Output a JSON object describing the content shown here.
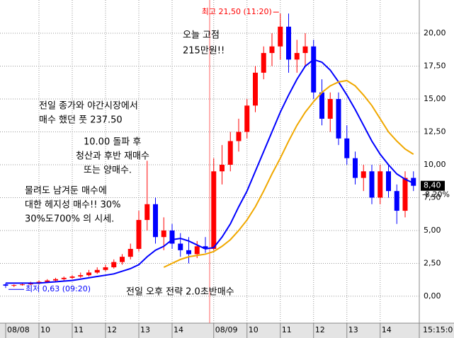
{
  "chart_data": {
    "type": "candlestick",
    "categories": [
      "08/08",
      null,
      null,
      null,
      "10",
      null,
      null,
      null,
      "11",
      null,
      null,
      null,
      "12",
      null,
      null,
      null,
      "13",
      null,
      null,
      null,
      "14",
      null,
      null,
      null,
      null,
      "08/09",
      null,
      null,
      null,
      "10",
      null,
      null,
      null,
      "11",
      null,
      null,
      null,
      "12",
      null,
      null,
      null,
      "13",
      null,
      null,
      null,
      "14",
      null,
      null,
      null,
      null
    ],
    "time_label": "15:15:0",
    "open": [
      0.9,
      0.8,
      0.85,
      0.9,
      1.0,
      1.1,
      1.2,
      1.3,
      1.4,
      1.5,
      1.6,
      1.8,
      2.0,
      2.2,
      2.6,
      3.0,
      3.6,
      5.8,
      7.0,
      4.5,
      5.0,
      4.0,
      3.5,
      3.2,
      3.8,
      3.6,
      9.5,
      10.0,
      11.8,
      12.5,
      14.5,
      17.0,
      18.5,
      19.0,
      20.5,
      18.0,
      18.5,
      19.0,
      15.5,
      13.5,
      15.0,
      12.0,
      10.5,
      9.0,
      9.5,
      7.5,
      9.5,
      8.0,
      6.5,
      9.0
    ],
    "high": [
      1.0,
      0.9,
      1.0,
      1.1,
      1.2,
      1.3,
      1.4,
      1.5,
      1.6,
      1.8,
      2.0,
      2.2,
      2.4,
      2.8,
      3.2,
      4.0,
      6.5,
      10.3,
      7.5,
      6.0,
      5.5,
      4.8,
      4.5,
      4.2,
      4.5,
      10.5,
      11.5,
      12.5,
      13.5,
      15.0,
      17.5,
      19.0,
      20.0,
      21.5,
      21.5,
      19.5,
      20.0,
      19.5,
      16.5,
      15.5,
      15.5,
      13.0,
      11.0,
      10.0,
      10.0,
      10.0,
      10.0,
      8.5,
      9.5,
      9.5
    ],
    "low": [
      0.63,
      0.7,
      0.8,
      0.85,
      0.9,
      1.0,
      1.1,
      1.2,
      1.3,
      1.4,
      1.5,
      1.7,
      1.9,
      2.1,
      2.4,
      2.8,
      3.4,
      5.0,
      4.0,
      3.5,
      3.6,
      3.0,
      2.5,
      2.9,
      3.3,
      3.5,
      8.5,
      9.5,
      11.0,
      12.0,
      14.0,
      16.5,
      17.5,
      18.0,
      17.0,
      17.0,
      17.5,
      15.0,
      13.0,
      12.5,
      11.5,
      10.0,
      8.5,
      8.0,
      7.0,
      7.0,
      7.5,
      5.5,
      6.0,
      8.0
    ],
    "close": [
      0.8,
      0.85,
      0.9,
      1.0,
      1.1,
      1.2,
      1.3,
      1.4,
      1.5,
      1.6,
      1.8,
      2.0,
      2.2,
      2.6,
      3.0,
      3.6,
      5.8,
      7.0,
      4.5,
      5.0,
      4.0,
      3.5,
      3.2,
      3.8,
      3.6,
      9.5,
      10.0,
      11.8,
      12.5,
      14.5,
      17.0,
      18.5,
      19.0,
      20.5,
      18.0,
      18.5,
      19.0,
      15.5,
      13.5,
      15.0,
      12.0,
      10.5,
      9.0,
      9.5,
      7.5,
      9.5,
      8.0,
      6.5,
      9.0,
      8.4
    ],
    "up_color": "#ff0000",
    "down_color": "#0000ff",
    "lines": [
      {
        "color": "#0000ff",
        "values": [
          1,
          1,
          1,
          1,
          1,
          1.05,
          1.1,
          1.15,
          1.2,
          1.3,
          1.4,
          1.5,
          1.6,
          1.7,
          1.9,
          2.1,
          2.4,
          3.0,
          3.5,
          3.8,
          4.3,
          4.4,
          4.2,
          3.9,
          3.6,
          3.7,
          4.5,
          5.5,
          6.8,
          8.0,
          9.5,
          11.0,
          12.5,
          14.0,
          15.3,
          16.5,
          17.5,
          18.0,
          17.8,
          17.2,
          16.3,
          15.3,
          14.2,
          13.0,
          11.8,
          10.8,
          10.0,
          9.3,
          8.9,
          8.6
        ]
      },
      {
        "color": "#f0a800",
        "values": [
          null,
          null,
          null,
          null,
          null,
          null,
          null,
          null,
          null,
          null,
          null,
          null,
          null,
          null,
          null,
          null,
          null,
          null,
          null,
          2.2,
          2.5,
          2.8,
          3.0,
          3.1,
          3.2,
          3.4,
          3.8,
          4.3,
          5.0,
          5.8,
          6.8,
          8.0,
          9.3,
          10.5,
          11.8,
          13.0,
          14.0,
          14.8,
          15.5,
          16.0,
          16.3,
          16.4,
          16.0,
          15.3,
          14.5,
          13.5,
          12.5,
          11.8,
          11.2,
          10.8
        ]
      }
    ],
    "ylim": [
      -1.94,
      22.53
    ],
    "yticks": [
      {
        "value": 0,
        "label": "0,00"
      },
      {
        "value": 2.5,
        "label": "2,50"
      },
      {
        "value": 5,
        "label": "5,00"
      },
      {
        "value": 7.5,
        "label": "7,50"
      },
      {
        "value": 10,
        "label": "10,00"
      },
      {
        "value": 12.5,
        "label": "12,50"
      },
      {
        "value": 15,
        "label": "15,00"
      },
      {
        "value": 17.5,
        "label": "17,50"
      },
      {
        "value": 20,
        "label": "20,00"
      }
    ],
    "grid": true,
    "high_marker": "최고 21,50 (11:20)",
    "low_marker": "최저 0,63 (09:20)",
    "last_price": {
      "value": 8.4,
      "label": "8,40"
    },
    "change_label": "-8,20%",
    "annotations": [
      {
        "lines": [
          "오늘 고점",
          "215만원!!"
        ]
      },
      {
        "lines": [
          "전일 종가와 야간시장에서",
          "매수 했던 풋 237.50"
        ]
      },
      {
        "lines": [
          "10.00 돌파 후",
          "청산과 후반 재매수",
          "또는 양매수."
        ]
      },
      {
        "lines": [
          "물려도 남겨둔 매수에",
          "대한 헤지성 매수!! 30%",
          "30%도700% 의 시세."
        ]
      },
      {
        "lines": [
          "전일 오후 전략 2.0초반매수"
        ]
      }
    ]
  }
}
